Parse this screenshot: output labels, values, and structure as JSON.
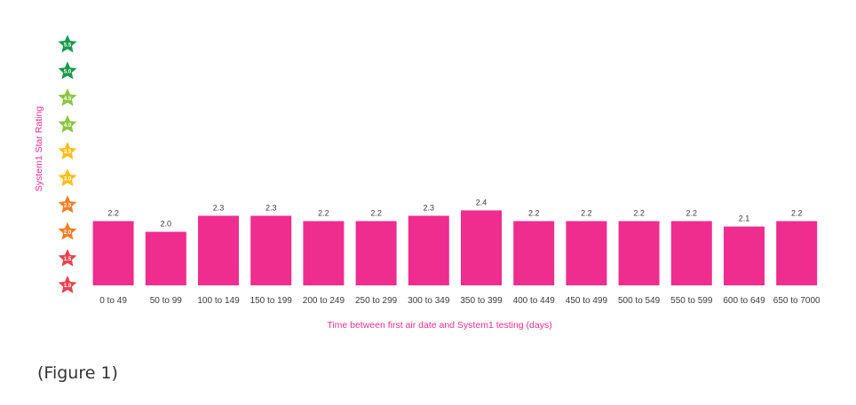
{
  "chart_data": {
    "type": "bar",
    "categories": [
      "0 to 49",
      "50 to 99",
      "100 to 149",
      "150 to 199",
      "200 to 249",
      "250 to 299",
      "300 to 349",
      "350 to 399",
      "400 to 449",
      "450 to 499",
      "500 to 549",
      "550 to 599",
      "600 to 649",
      "650 to 7000"
    ],
    "values": [
      2.2,
      2.0,
      2.3,
      2.3,
      2.2,
      2.2,
      2.3,
      2.4,
      2.2,
      2.2,
      2.2,
      2.2,
      2.1,
      2.2
    ],
    "value_labels": [
      "2.2",
      "2.0",
      "2.3",
      "2.3",
      "2.2",
      "2.2",
      "2.3",
      "2.4",
      "2.2",
      "2.2",
      "2.2",
      "2.2",
      "2.1",
      "2.2"
    ],
    "xlabel": "Time between first air date and System1 testing (days)",
    "ylabel": "System1 Star Rating",
    "ylim": [
      1.0,
      5.5
    ],
    "y_ticks": [
      {
        "label": "1.0",
        "value": 1.0,
        "color": "#e84350"
      },
      {
        "label": "1.5",
        "value": 1.5,
        "color": "#e84350"
      },
      {
        "label": "2.0",
        "value": 2.0,
        "color": "#f07f26"
      },
      {
        "label": "2.5",
        "value": 2.5,
        "color": "#f07f26"
      },
      {
        "label": "3.0",
        "value": 3.0,
        "color": "#fbbf1c"
      },
      {
        "label": "3.5",
        "value": 3.5,
        "color": "#fbbf1c"
      },
      {
        "label": "4.0",
        "value": 4.0,
        "color": "#8cc63f"
      },
      {
        "label": "4.5",
        "value": 4.5,
        "color": "#8cc63f"
      },
      {
        "label": "5.0",
        "value": 5.0,
        "color": "#179b4c"
      },
      {
        "label": "5.5",
        "value": 5.5,
        "color": "#179b4c"
      }
    ],
    "bar_color": "#ee2d8f",
    "grid": false,
    "legend": "none"
  },
  "caption": "(Figure 1)"
}
